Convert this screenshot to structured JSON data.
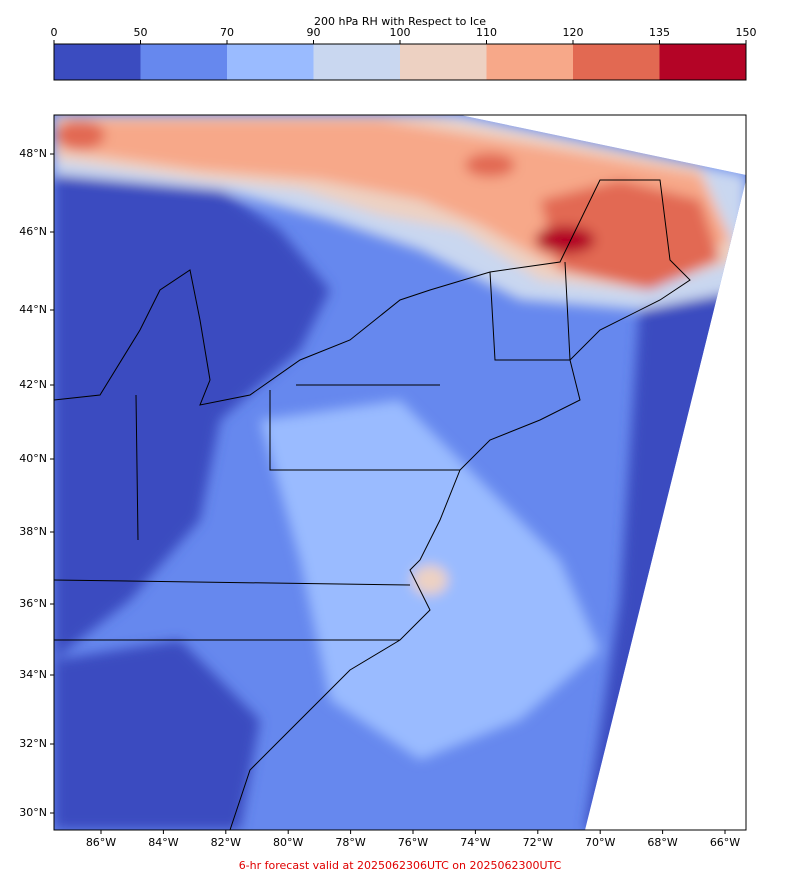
{
  "colorbar": {
    "title": "200 hPa RH with Respect to Ice",
    "levels": [
      0,
      50,
      70,
      90,
      100,
      110,
      120,
      135,
      150
    ],
    "colors": [
      "#3b4cc0",
      "#6688ee",
      "#9abbff",
      "#c9d7f0",
      "#edd1c2",
      "#f7a889",
      "#e26952",
      "#b40426"
    ]
  },
  "map": {
    "lat_labels": [
      "48°N",
      "46°N",
      "44°N",
      "42°N",
      "40°N",
      "38°N",
      "36°N",
      "34°N",
      "32°N",
      "30°N"
    ],
    "lon_labels": [
      "86°W",
      "84°W",
      "82°W",
      "80°W",
      "78°W",
      "76°W",
      "74°W",
      "72°W",
      "70°W",
      "68°W",
      "66°W"
    ]
  },
  "footer": "6-hr forecast valid at 2025062306UTC on 2025062300UTC"
}
